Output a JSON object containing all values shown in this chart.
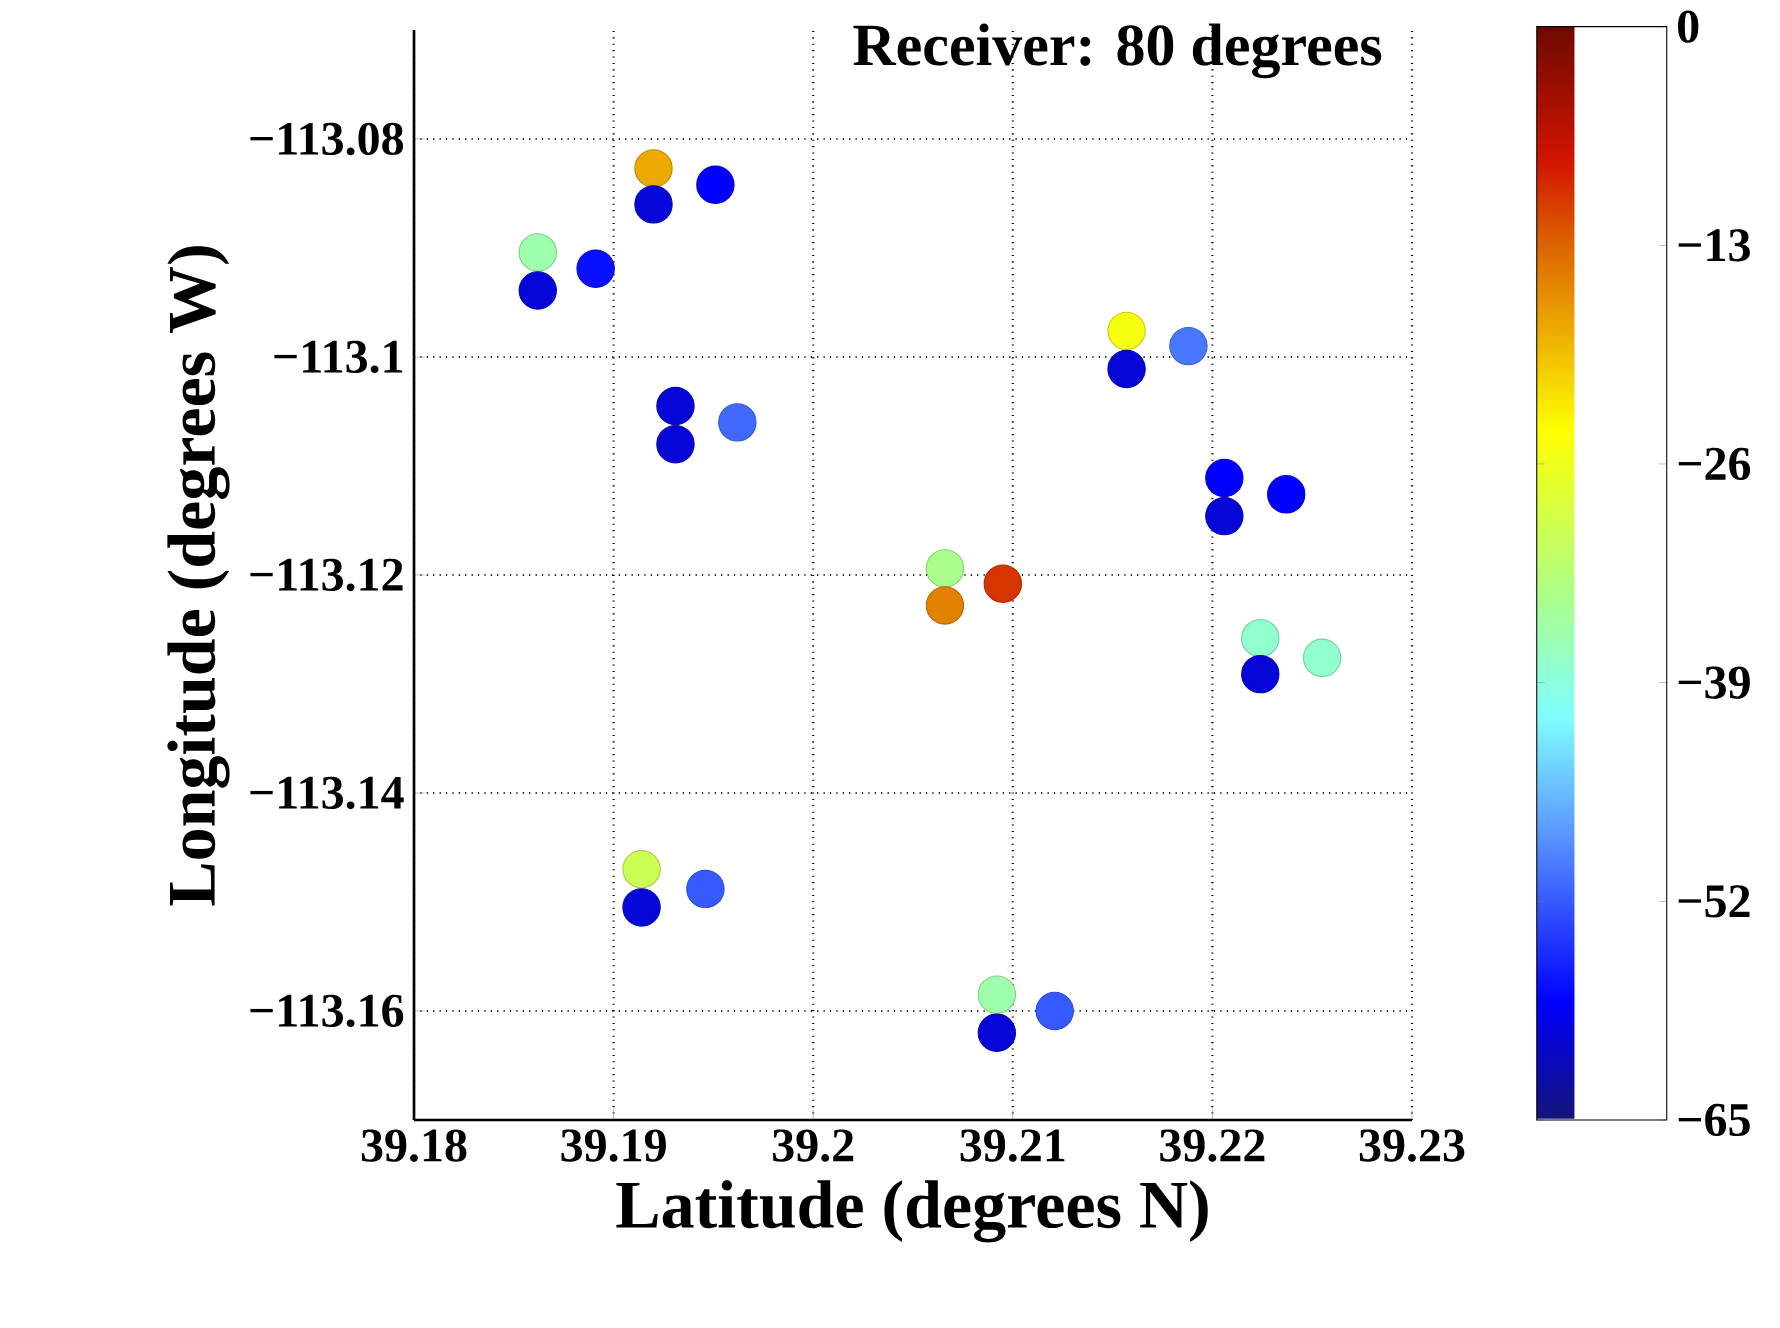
{
  "chart_data": {
    "type": "scatter",
    "title": "Receiver: 80 degrees",
    "xlabel": "Latitude (degrees N)",
    "ylabel": "Longitude (degrees W)",
    "x": [
      39.192,
      39.192,
      39.1951,
      39.1862,
      39.1862,
      39.1891,
      39.2157,
      39.2157,
      39.2188,
      39.1931,
      39.1931,
      39.1962,
      39.2206,
      39.2206,
      39.2237,
      39.2066,
      39.2066,
      39.2095,
      39.2224,
      39.2224,
      39.2255,
      39.1914,
      39.1914,
      39.1946,
      39.2092,
      39.2092,
      39.2121
    ],
    "values": [
      -113.0827,
      -113.086,
      -113.0842,
      -113.0904,
      -113.0939,
      -113.0919,
      -113.0976,
      -113.1011,
      -113.099,
      -113.1045,
      -113.108,
      -113.106,
      -113.1111,
      -113.1146,
      -113.1126,
      -113.1194,
      -113.1228,
      -113.1208,
      -113.1258,
      -113.1291,
      -113.1276,
      -113.147,
      -113.1505,
      -113.1488,
      -113.1585,
      -113.162,
      -113.16
    ],
    "cvalues": [
      -18,
      -60,
      -58,
      -36,
      -60,
      -57,
      -25,
      -60,
      -50,
      -60,
      -60,
      -51,
      -58,
      -60,
      -58,
      -34,
      -15,
      -10,
      -38,
      -60,
      -38,
      -30,
      -60,
      -52,
      -36,
      -60,
      -52
    ],
    "xlim": [
      39.18,
      39.23
    ],
    "ylim": [
      -113.17,
      -113.07
    ],
    "xticks": [
      39.18,
      39.19,
      39.2,
      39.21,
      39.22,
      39.23
    ],
    "yticks": [
      {
        "value": -113.08,
        "label": "−113.08"
      },
      {
        "value": -113.1,
        "label": "−113.1"
      },
      {
        "value": -113.12,
        "label": "−113.12"
      },
      {
        "value": -113.14,
        "label": "−113.14"
      },
      {
        "value": -113.16,
        "label": "−113.16"
      }
    ],
    "clim": [
      -65,
      0
    ],
    "cticks": [
      0,
      {
        "value": -13,
        "label": "−13"
      },
      {
        "value": -26,
        "label": "−26"
      },
      {
        "value": -39,
        "label": "−39"
      },
      {
        "value": -52,
        "label": "−52"
      },
      {
        "value": -65,
        "label": "−65"
      }
    ],
    "grid": true,
    "marker": "circle"
  }
}
